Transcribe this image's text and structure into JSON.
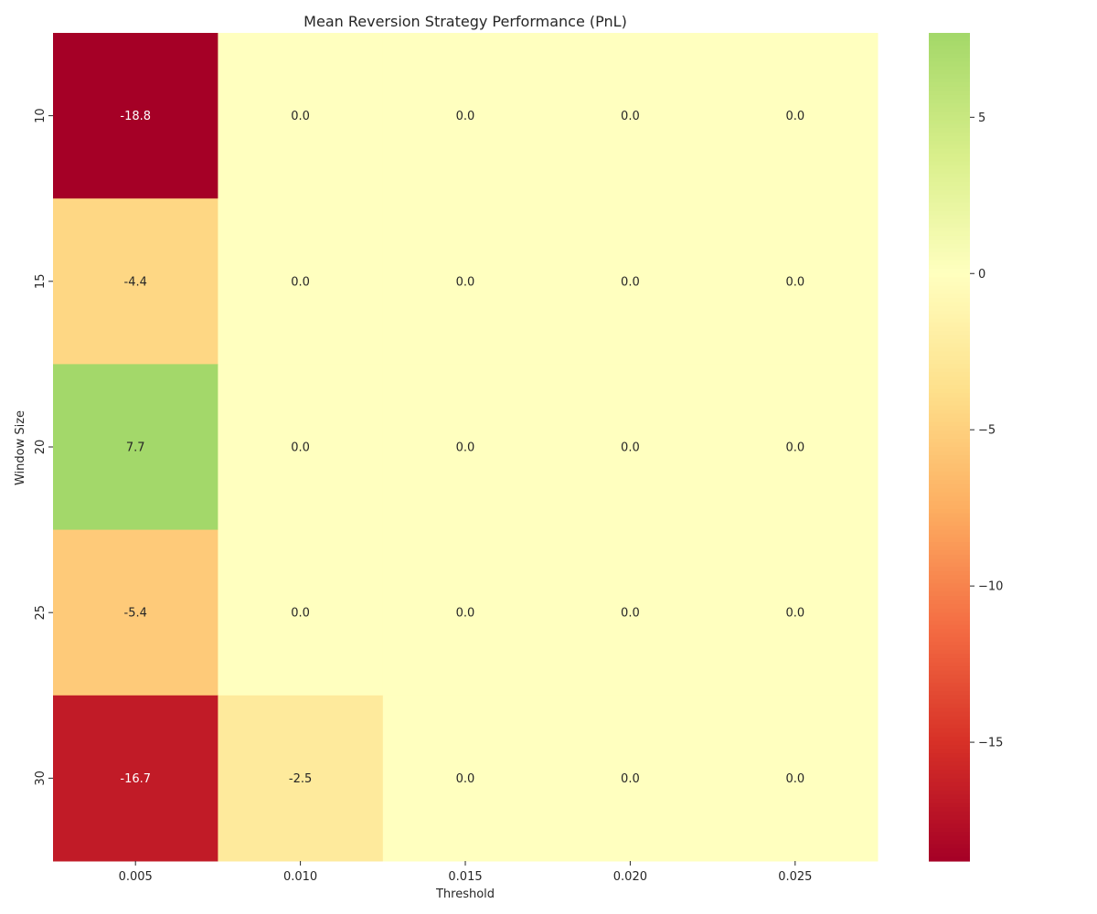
{
  "chart_data": {
    "type": "heatmap",
    "title": "Mean Reversion Strategy Performance (PnL)",
    "xlabel": "Threshold",
    "ylabel": "Window Size",
    "x_categories": [
      "0.005",
      "0.010",
      "0.015",
      "0.020",
      "0.025"
    ],
    "y_categories": [
      "10",
      "15",
      "20",
      "25",
      "30"
    ],
    "values": [
      [
        -18.8,
        0.0,
        0.0,
        0.0,
        0.0
      ],
      [
        -4.4,
        0.0,
        0.0,
        0.0,
        0.0
      ],
      [
        7.7,
        0.0,
        0.0,
        0.0,
        0.0
      ],
      [
        -5.4,
        0.0,
        0.0,
        0.0,
        0.0
      ],
      [
        -16.7,
        -2.5,
        0.0,
        0.0,
        0.0
      ]
    ],
    "cell_labels": [
      [
        "-18.8",
        "0.0",
        "0.0",
        "0.0",
        "0.0"
      ],
      [
        "-4.4",
        "0.0",
        "0.0",
        "0.0",
        "0.0"
      ],
      [
        "7.7",
        "0.0",
        "0.0",
        "0.0",
        "0.0"
      ],
      [
        "-5.4",
        "0.0",
        "0.0",
        "0.0",
        "0.0"
      ],
      [
        "-16.7",
        "-2.5",
        "0.0",
        "0.0",
        "0.0"
      ]
    ],
    "colormap": "RdYlGn",
    "colorbar": {
      "vmin": -18.8,
      "vmax": 7.7,
      "center": 0,
      "ticks": [
        5,
        0,
        -5,
        -10,
        -15
      ],
      "tick_labels": [
        "5",
        "0",
        "−5",
        "−10",
        "−15"
      ]
    },
    "grid": false,
    "legend": "colorbar-right"
  }
}
